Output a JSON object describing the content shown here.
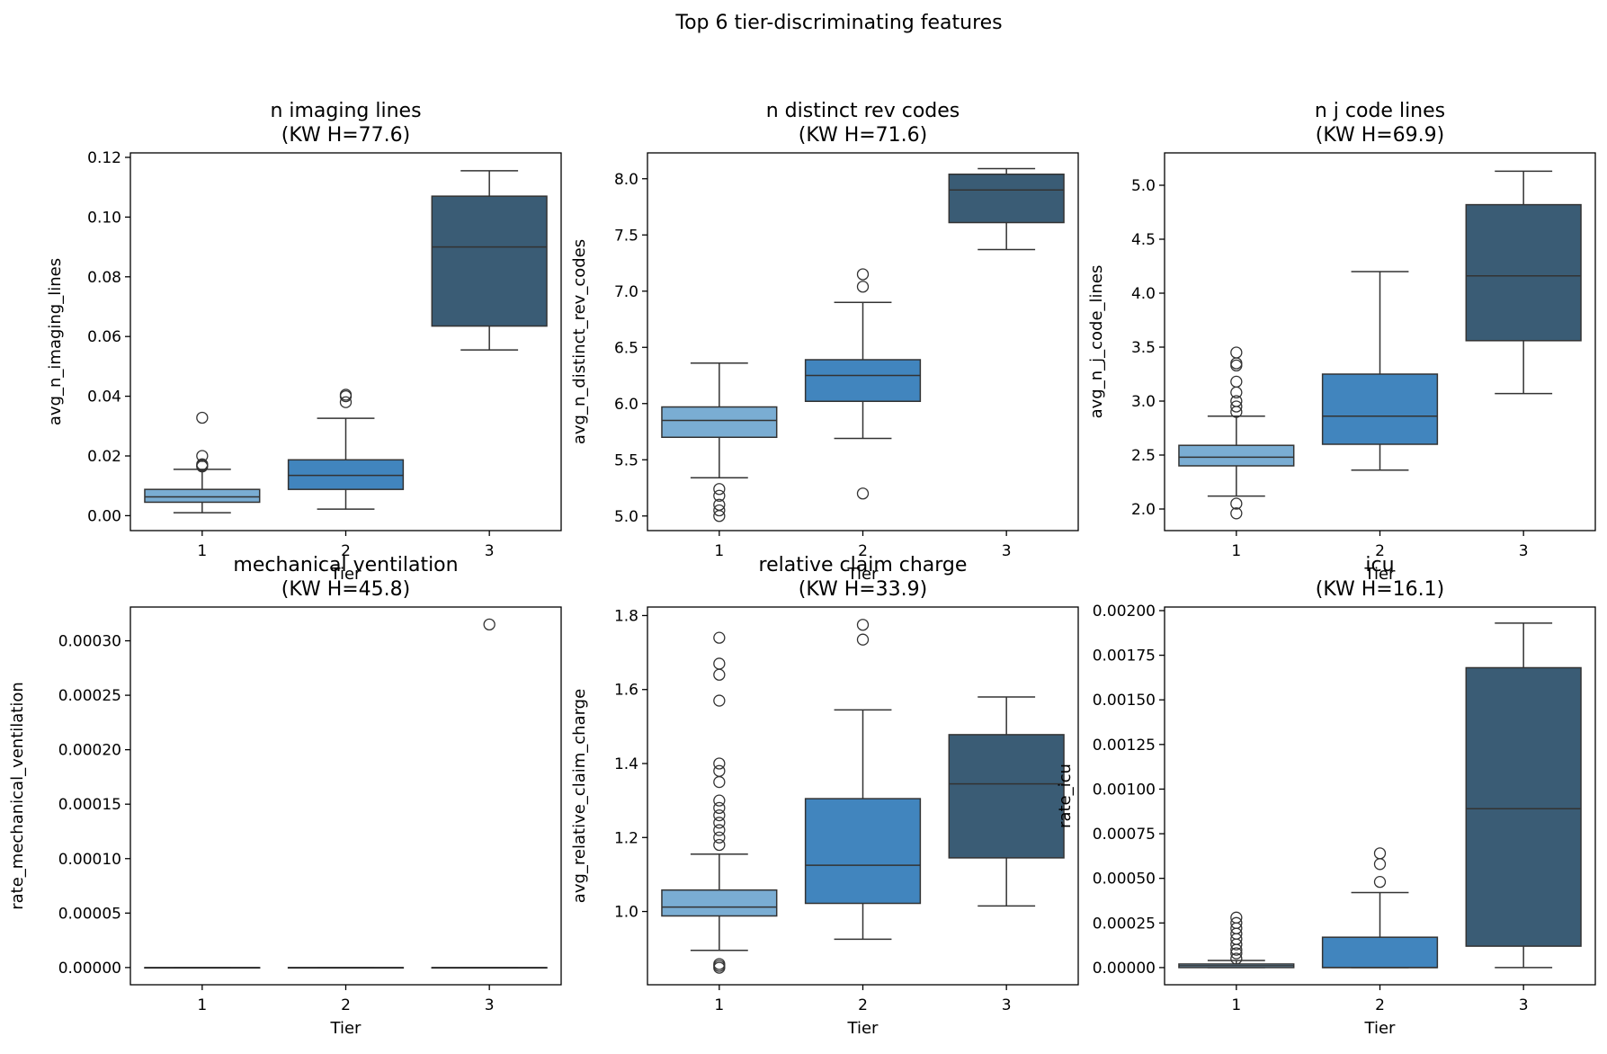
{
  "figure": {
    "title": "Top 6 tier-discriminating features"
  },
  "colors": {
    "tier1": "#7aadd3",
    "tier2": "#4185be",
    "tier3": "#3a5c75",
    "line": "#333333"
  },
  "chart_data": [
    {
      "type": "box",
      "title": "n imaging lines",
      "subtitle": "(KW H=77.6)",
      "xlabel": "Tier",
      "ylabel": "avg_n_imaging_lines",
      "categories": [
        "1",
        "2",
        "3"
      ],
      "ylim": [
        -0.005,
        0.1215
      ],
      "yticks": [
        0.0,
        0.02,
        0.04,
        0.06,
        0.08,
        0.1,
        0.12
      ],
      "ytick_labels": [
        "0.00",
        "0.02",
        "0.04",
        "0.06",
        "0.08",
        "0.10",
        "0.12"
      ],
      "boxes": [
        {
          "tier": "1",
          "whislo": 0.001,
          "q1": 0.0045,
          "med": 0.0063,
          "q3": 0.0088,
          "whishi": 0.0155,
          "fliers": [
            0.0165,
            0.0168,
            0.0172,
            0.02,
            0.0328
          ]
        },
        {
          "tier": "2",
          "whislo": 0.0022,
          "q1": 0.0088,
          "med": 0.0135,
          "q3": 0.0187,
          "whishi": 0.0326,
          "fliers": [
            0.038,
            0.04,
            0.0405
          ]
        },
        {
          "tier": "3",
          "whislo": 0.0555,
          "q1": 0.0635,
          "med": 0.09,
          "q3": 0.107,
          "whishi": 0.1155,
          "fliers": []
        }
      ]
    },
    {
      "type": "box",
      "title": "n distinct rev codes",
      "subtitle": "(KW H=71.6)",
      "xlabel": "Tier",
      "ylabel": "avg_n_distinct_rev_codes",
      "categories": [
        "1",
        "2",
        "3"
      ],
      "ylim": [
        4.87,
        8.23
      ],
      "yticks": [
        5.0,
        5.5,
        6.0,
        6.5,
        7.0,
        7.5,
        8.0
      ],
      "ytick_labels": [
        "5.0",
        "5.5",
        "6.0",
        "6.5",
        "7.0",
        "7.5",
        "8.0"
      ],
      "boxes": [
        {
          "tier": "1",
          "whislo": 5.34,
          "q1": 5.7,
          "med": 5.85,
          "q3": 5.97,
          "whishi": 6.36,
          "fliers": [
            5.0,
            5.05,
            5.1,
            5.18,
            5.24
          ]
        },
        {
          "tier": "2",
          "whislo": 5.69,
          "q1": 6.02,
          "med": 6.25,
          "q3": 6.39,
          "whishi": 6.9,
          "fliers": [
            5.2,
            7.04,
            7.15
          ]
        },
        {
          "tier": "3",
          "whislo": 7.37,
          "q1": 7.61,
          "med": 7.9,
          "q3": 8.04,
          "whishi": 8.09,
          "fliers": []
        }
      ]
    },
    {
      "type": "box",
      "title": "n j code lines",
      "subtitle": "(KW H=69.9)",
      "xlabel": "Tier",
      "ylabel": "avg_n_j_code_lines",
      "categories": [
        "1",
        "2",
        "3"
      ],
      "ylim": [
        1.8,
        5.3
      ],
      "yticks": [
        2.0,
        2.5,
        3.0,
        3.5,
        4.0,
        4.5,
        5.0
      ],
      "ytick_labels": [
        "2.0",
        "2.5",
        "3.0",
        "3.5",
        "4.0",
        "4.5",
        "5.0"
      ],
      "boxes": [
        {
          "tier": "1",
          "whislo": 2.12,
          "q1": 2.4,
          "med": 2.48,
          "q3": 2.59,
          "whishi": 2.86,
          "fliers": [
            1.96,
            2.05,
            2.9,
            2.95,
            3.0,
            3.08,
            3.18,
            3.33,
            3.35,
            3.45
          ]
        },
        {
          "tier": "2",
          "whislo": 2.36,
          "q1": 2.6,
          "med": 2.86,
          "q3": 3.25,
          "whishi": 4.2,
          "fliers": []
        },
        {
          "tier": "3",
          "whislo": 3.07,
          "q1": 3.56,
          "med": 4.16,
          "q3": 4.82,
          "whishi": 5.13,
          "fliers": []
        }
      ]
    },
    {
      "type": "box",
      "title": "mechanical ventilation",
      "subtitle": "(KW H=45.8)",
      "xlabel": "Tier",
      "ylabel": "rate_mechanical_ventilation",
      "categories": [
        "1",
        "2",
        "3"
      ],
      "ylim": [
        -1.58e-05,
        0.000331
      ],
      "yticks": [
        0.0,
        5e-05,
        0.0001,
        0.00015,
        0.0002,
        0.00025,
        0.0003
      ],
      "ytick_labels": [
        "0.00000",
        "0.00005",
        "0.00010",
        "0.00015",
        "0.00020",
        "0.00025",
        "0.00030"
      ],
      "boxes": [
        {
          "tier": "1",
          "whislo": 0.0,
          "q1": 0.0,
          "med": 0.0,
          "q3": 0.0,
          "whishi": 0.0,
          "fliers": []
        },
        {
          "tier": "2",
          "whislo": 0.0,
          "q1": 0.0,
          "med": 0.0,
          "q3": 0.0,
          "whishi": 0.0,
          "fliers": []
        },
        {
          "tier": "3",
          "whislo": 0.0,
          "q1": 0.0,
          "med": 0.0,
          "q3": 0.0,
          "whishi": 0.0,
          "fliers": [
            0.000315
          ]
        }
      ]
    },
    {
      "type": "box",
      "title": "relative claim charge",
      "subtitle": "(KW H=33.9)",
      "xlabel": "Tier",
      "ylabel": "avg_relative_claim_charge",
      "categories": [
        "1",
        "2",
        "3"
      ],
      "ylim": [
        0.802,
        1.823
      ],
      "yticks": [
        1.0,
        1.2,
        1.4,
        1.6,
        1.8
      ],
      "ytick_labels": [
        "1.0",
        "1.2",
        "1.4",
        "1.6",
        "1.8"
      ],
      "boxes": [
        {
          "tier": "1",
          "whislo": 0.895,
          "q1": 0.988,
          "med": 1.012,
          "q3": 1.058,
          "whishi": 1.155,
          "fliers": [
            0.848,
            0.853,
            0.858,
            1.18,
            1.2,
            1.22,
            1.24,
            1.26,
            1.28,
            1.3,
            1.35,
            1.38,
            1.4,
            1.57,
            1.64,
            1.67,
            1.74
          ]
        },
        {
          "tier": "2",
          "whislo": 0.925,
          "q1": 1.022,
          "med": 1.125,
          "q3": 1.305,
          "whishi": 1.545,
          "fliers": [
            1.735,
            1.775
          ]
        },
        {
          "tier": "3",
          "whislo": 1.015,
          "q1": 1.145,
          "med": 1.345,
          "q3": 1.478,
          "whishi": 1.58,
          "fliers": []
        }
      ]
    },
    {
      "type": "box",
      "title": "icu",
      "subtitle": "(KW H=16.1)",
      "xlabel": "Tier",
      "ylabel": "rate_icu",
      "categories": [
        "1",
        "2",
        "3"
      ],
      "ylim": [
        -9.62e-05,
        0.00202
      ],
      "yticks": [
        0.0,
        0.00025,
        0.0005,
        0.00075,
        0.001,
        0.00125,
        0.0015,
        0.00175,
        0.002
      ],
      "ytick_labels": [
        "0.00000",
        "0.00025",
        "0.00050",
        "0.00075",
        "0.00100",
        "0.00125",
        "0.00150",
        "0.00175",
        "0.00200"
      ],
      "boxes": [
        {
          "tier": "1",
          "whislo": 0.0,
          "q1": 0.0,
          "med": 1e-05,
          "q3": 2e-05,
          "whishi": 4e-05,
          "fliers": [
            5e-05,
            8e-05,
            0.0001,
            0.00013,
            0.00016,
            0.00019,
            0.00022,
            0.00025,
            0.00028
          ]
        },
        {
          "tier": "2",
          "whislo": 0.0,
          "q1": 0.0,
          "med": 0.0,
          "q3": 0.00017,
          "whishi": 0.00042,
          "fliers": [
            0.00048,
            0.00058,
            0.00064
          ]
        },
        {
          "tier": "3",
          "whislo": 0.0,
          "q1": 0.00012,
          "med": 0.00089,
          "q3": 0.00168,
          "whishi": 0.00193,
          "fliers": []
        }
      ]
    }
  ]
}
